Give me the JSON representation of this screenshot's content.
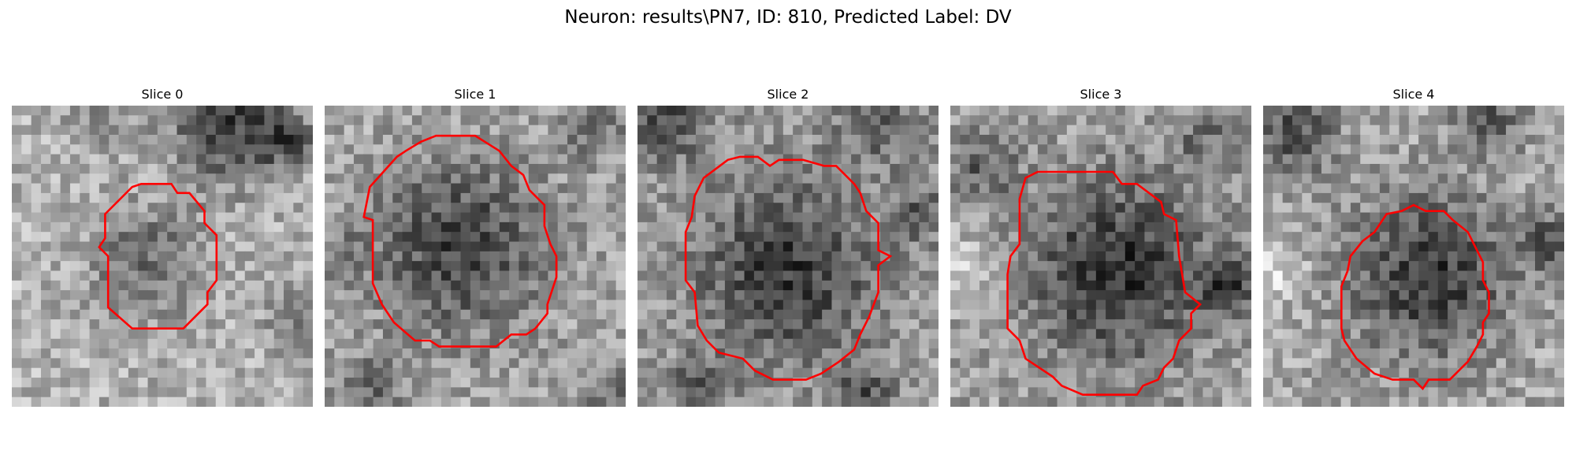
{
  "figure": {
    "title": "Neuron: results\\PN7, ID: 810, Predicted Label: DV"
  },
  "colors": {
    "contour": "#ff0000"
  },
  "panels": [
    {
      "label": "Slice 0"
    },
    {
      "label": "Slice 1"
    },
    {
      "label": "Slice 2"
    },
    {
      "label": "Slice 3"
    },
    {
      "label": "Slice 4"
    }
  ]
}
